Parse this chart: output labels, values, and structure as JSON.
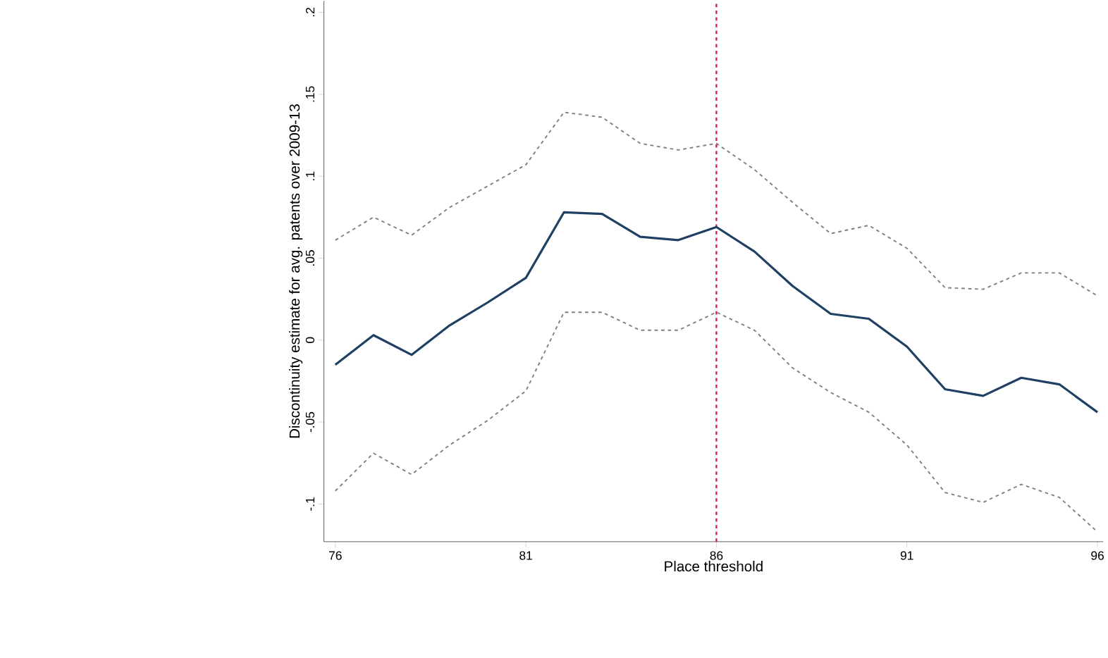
{
  "chart_data": {
    "type": "line",
    "xlabel": "Place threshold",
    "ylabel": "Discontinuity estimate for avg. patents over 2009-13",
    "x": [
      76,
      77,
      78,
      79,
      80,
      81,
      82,
      83,
      84,
      85,
      86,
      87,
      88,
      89,
      90,
      91,
      92,
      93,
      94,
      95,
      96
    ],
    "series": [
      {
        "color": "#808080",
        "line_style": "dashed",
        "values": [
          0.061,
          0.075,
          0.064,
          0.081,
          0.094,
          0.107,
          0.139,
          0.136,
          0.12,
          0.116,
          0.12,
          0.104,
          0.084,
          0.065,
          0.07,
          0.056,
          0.032,
          0.031,
          0.041,
          0.041,
          0.027
        ]
      },
      {
        "color": "#808080",
        "line_style": "dashed",
        "values": [
          -0.092,
          -0.069,
          -0.082,
          -0.064,
          -0.049,
          -0.031,
          0.017,
          0.017,
          0.006,
          0.006,
          0.017,
          0.006,
          -0.017,
          -0.032,
          -0.044,
          -0.064,
          -0.093,
          -0.099,
          -0.088,
          -0.096,
          -0.117
        ]
      },
      {
        "color": "#1f3f63",
        "line_style": "solid",
        "values": [
          -0.015,
          0.003,
          -0.009,
          0.009,
          0.023,
          0.038,
          0.078,
          0.077,
          0.063,
          0.061,
          0.069,
          0.054,
          0.033,
          0.016,
          0.013,
          -0.004,
          -0.03,
          -0.034,
          -0.023,
          -0.027,
          -0.044
        ]
      }
    ],
    "xlim": [
      75.7,
      96.15
    ],
    "ylim": [
      -0.123,
      0.207
    ],
    "xticks": [
      76,
      81,
      86,
      91,
      96
    ],
    "yticks": [
      {
        "value": -0.1,
        "label": "-.1"
      },
      {
        "value": -0.05,
        "label": "-.05"
      },
      {
        "value": 0,
        "label": "0"
      },
      {
        "value": 0.05,
        "label": ".05"
      },
      {
        "value": 0.1,
        "label": ".1"
      },
      {
        "value": 0.15,
        "label": ".15"
      },
      {
        "value": 0.2,
        "label": ".2"
      }
    ],
    "ref_lines": [
      {
        "axis": "x",
        "value": 86,
        "color": "#d62040",
        "line_style": "dashed"
      }
    ],
    "grid": false,
    "marker": "none"
  }
}
